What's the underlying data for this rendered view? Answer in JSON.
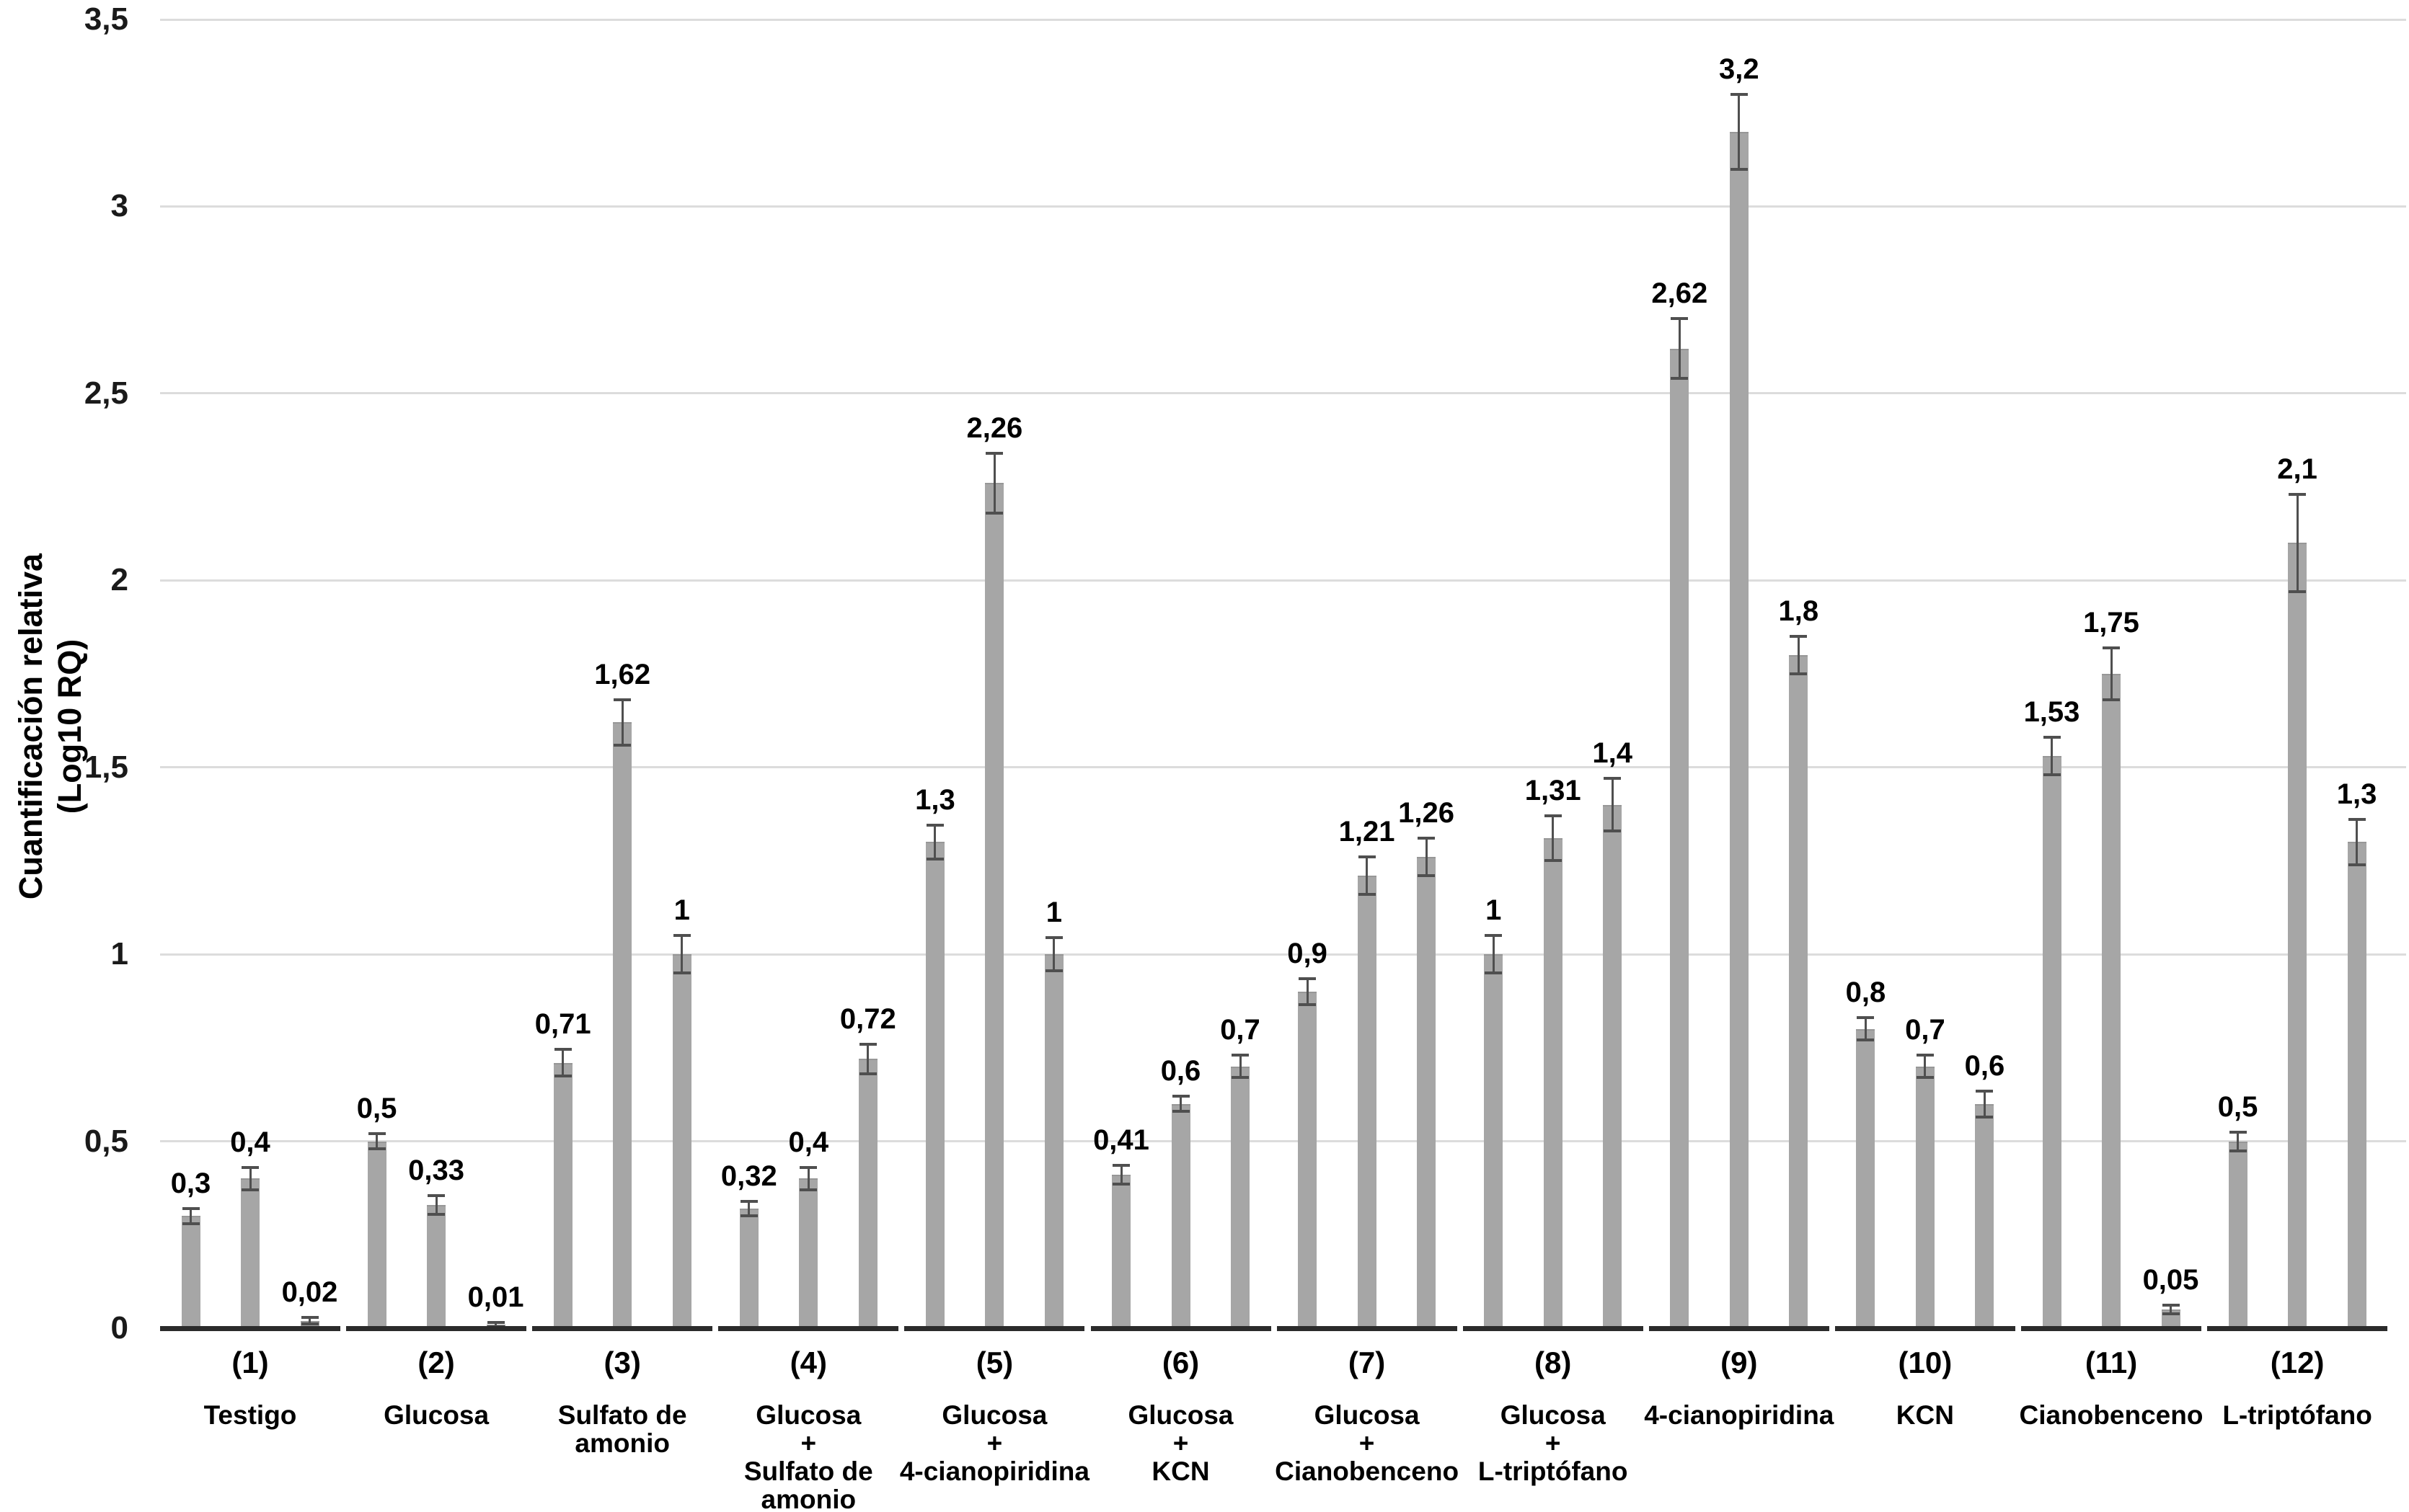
{
  "chart_data": {
    "type": "bar",
    "title": "",
    "ylabel_lines": [
      "Cuantificación relativa",
      "(Log10 RQ)"
    ],
    "y_axis": {
      "min": 0,
      "max": 3.5,
      "tick_values": [
        3.5,
        3,
        2.5,
        2,
        1.5,
        1,
        0.5,
        0
      ],
      "tick_labels": [
        "3,5",
        "3",
        "2,5",
        "2",
        "1,5",
        "1",
        "0,5",
        "0"
      ],
      "grid": "horizontal"
    },
    "legend": "none",
    "colors": {
      "bar_fill": "#a6a6a6",
      "bar_edge": "#979797",
      "error_bar": "#4f4f4f",
      "gridline": "#dcdcdc",
      "axis_segment": "#2b2b2b",
      "text": "#000000"
    },
    "groups": [
      {
        "number": "(1)",
        "name_lines": [
          "Testigo"
        ],
        "values": [
          0.3,
          0.4,
          0.02
        ],
        "labels": [
          "0,3",
          "0,4",
          "0,02"
        ],
        "errors": [
          0.02,
          0.03,
          0.008
        ]
      },
      {
        "number": "(2)",
        "name_lines": [
          "Glucosa"
        ],
        "values": [
          0.5,
          0.33,
          0.01
        ],
        "labels": [
          "0,5",
          "0,33",
          "0,01"
        ],
        "errors": [
          0.02,
          0.025,
          0.006
        ]
      },
      {
        "number": "(3)",
        "name_lines": [
          "Sulfato de",
          "amonio"
        ],
        "values": [
          0.71,
          1.62,
          1.0
        ],
        "labels": [
          "0,71",
          "1,62",
          "1"
        ],
        "errors": [
          0.035,
          0.06,
          0.05
        ]
      },
      {
        "number": "(4)",
        "name_lines": [
          "Glucosa",
          "+",
          "Sulfato de",
          "amonio"
        ],
        "values": [
          0.32,
          0.4,
          0.72
        ],
        "labels": [
          "0,32",
          "0,4",
          "0,72"
        ],
        "errors": [
          0.02,
          0.03,
          0.04
        ]
      },
      {
        "number": "(5)",
        "name_lines": [
          "Glucosa",
          "+",
          "4-cianopiridina"
        ],
        "values": [
          1.3,
          2.26,
          1.0
        ],
        "labels": [
          "1,3",
          "2,26",
          "1"
        ],
        "errors": [
          0.045,
          0.08,
          0.045
        ]
      },
      {
        "number": "(6)",
        "name_lines": [
          "Glucosa",
          "+",
          "KCN"
        ],
        "values": [
          0.41,
          0.6,
          0.7
        ],
        "labels": [
          "0,41",
          "0,6",
          "0,7"
        ],
        "errors": [
          0.025,
          0.02,
          0.03
        ]
      },
      {
        "number": "(7)",
        "name_lines": [
          "Glucosa",
          "+",
          "Cianobenceno"
        ],
        "values": [
          0.9,
          1.21,
          1.26
        ],
        "labels": [
          "0,9",
          "1,21",
          "1,26"
        ],
        "errors": [
          0.035,
          0.05,
          0.05
        ]
      },
      {
        "number": "(8)",
        "name_lines": [
          "Glucosa",
          "+",
          "L-triptófano"
        ],
        "values": [
          1.0,
          1.31,
          1.4
        ],
        "labels": [
          "1",
          "1,31",
          "1,4"
        ],
        "errors": [
          0.05,
          0.06,
          0.07
        ]
      },
      {
        "number": "(9)",
        "name_lines": [
          "4-cianopiridina"
        ],
        "values": [
          2.62,
          3.2,
          1.8
        ],
        "labels": [
          "2,62",
          "3,2",
          "1,8"
        ],
        "errors": [
          0.08,
          0.1,
          0.05
        ]
      },
      {
        "number": "(10)",
        "name_lines": [
          "KCN"
        ],
        "values": [
          0.8,
          0.7,
          0.6
        ],
        "labels": [
          "0,8",
          "0,7",
          "0,6"
        ],
        "errors": [
          0.03,
          0.03,
          0.035
        ]
      },
      {
        "number": "(11)",
        "name_lines": [
          "Cianobenceno"
        ],
        "values": [
          1.53,
          1.75,
          0.05
        ],
        "labels": [
          "1,53",
          "1,75",
          "0,05"
        ],
        "errors": [
          0.05,
          0.07,
          0.012
        ]
      },
      {
        "number": "(12)",
        "name_lines": [
          "L-triptófano"
        ],
        "values": [
          0.5,
          2.1,
          1.3
        ],
        "labels": [
          "0,5",
          "2,1",
          "1,3"
        ],
        "errors": [
          0.025,
          0.13,
          0.06
        ]
      }
    ]
  }
}
